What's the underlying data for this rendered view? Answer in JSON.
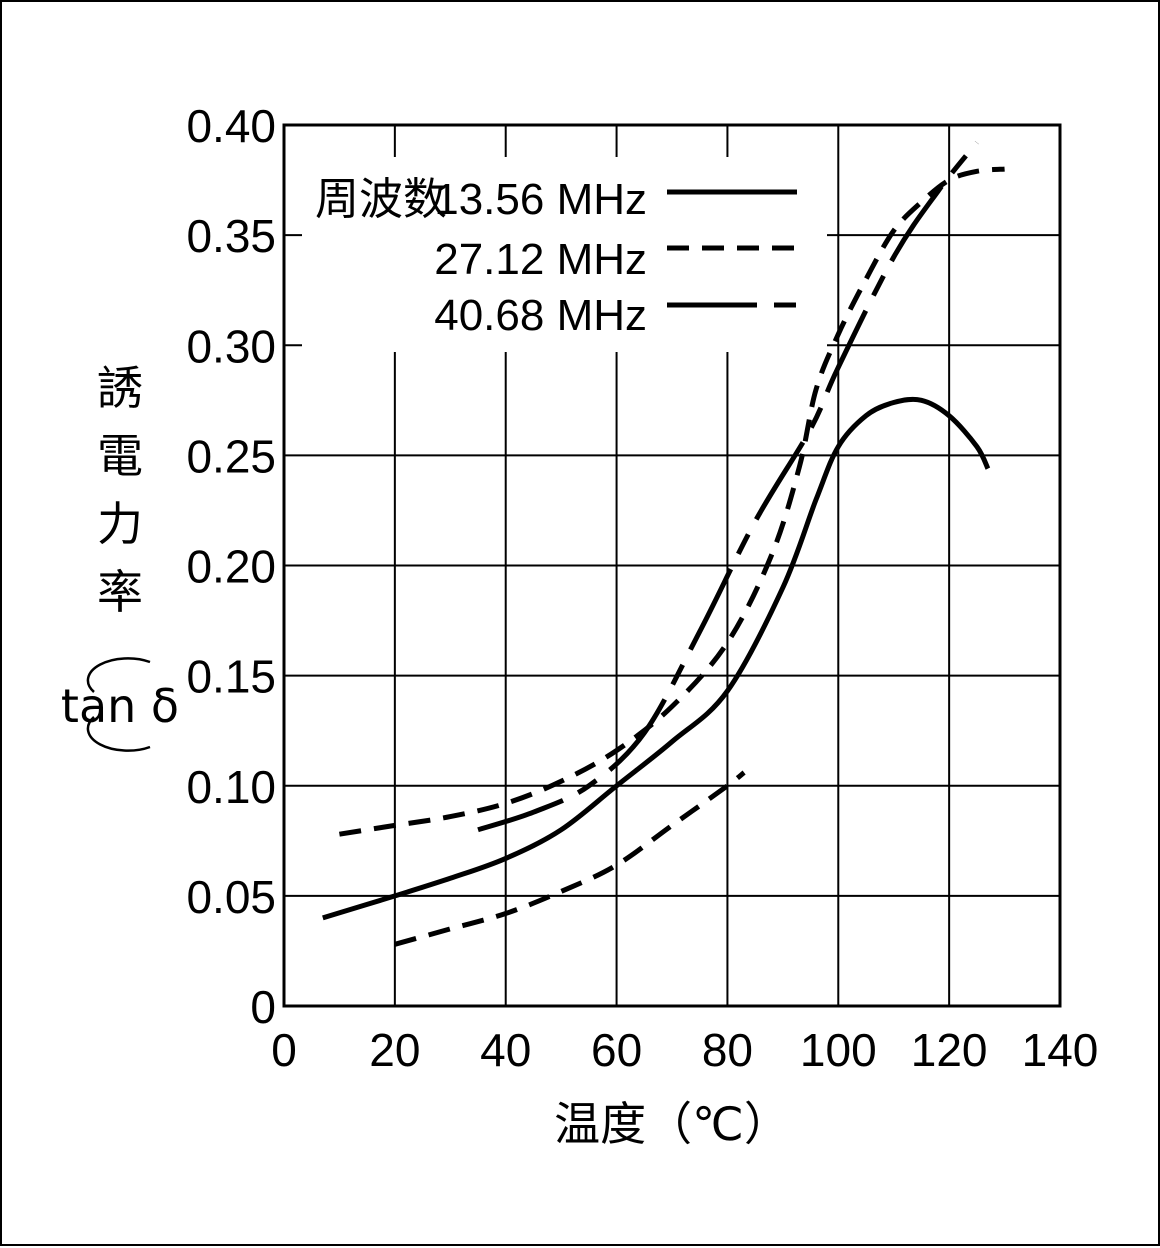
{
  "chart_data": {
    "type": "line",
    "xlabel": "温度（℃）",
    "ylabel": "誘電力率",
    "ylabel_sub": "tan δ",
    "xlim": [
      0,
      140
    ],
    "ylim": [
      0,
      0.4
    ],
    "x_ticks": [
      "0",
      "20",
      "40",
      "60",
      "80",
      "100",
      "120",
      "140"
    ],
    "y_ticks": [
      "0",
      "0.05",
      "0.10",
      "0.15",
      "0.20",
      "0.25",
      "0.30",
      "0.35",
      "0.40"
    ],
    "grid": true,
    "legend_prefix": "周波数",
    "series": [
      {
        "name": "13.56 MHz",
        "style": "solid",
        "points": [
          [
            7,
            0.04
          ],
          [
            20,
            0.05
          ],
          [
            30,
            0.058
          ],
          [
            40,
            0.067
          ],
          [
            50,
            0.08
          ],
          [
            60,
            0.1
          ],
          [
            70,
            0.12
          ],
          [
            80,
            0.143
          ],
          [
            90,
            0.19
          ],
          [
            96,
            0.23
          ],
          [
            100,
            0.254
          ],
          [
            105,
            0.268
          ],
          [
            110,
            0.274
          ],
          [
            115,
            0.275
          ],
          [
            120,
            0.268
          ],
          [
            125,
            0.254
          ],
          [
            127,
            0.244
          ]
        ]
      },
      {
        "name": "27.12 MHz",
        "style": "dashed",
        "points": [
          [
            20,
            0.028
          ],
          [
            30,
            0.035
          ],
          [
            40,
            0.042
          ],
          [
            50,
            0.052
          ],
          [
            60,
            0.064
          ],
          [
            70,
            0.082
          ],
          [
            80,
            0.1
          ],
          [
            83,
            0.106
          ]
        ]
      },
      {
        "name": "27.12 MHz",
        "style": "dashed",
        "points": [
          [
            10,
            0.078
          ],
          [
            20,
            0.082
          ],
          [
            30,
            0.086
          ],
          [
            40,
            0.092
          ],
          [
            50,
            0.102
          ],
          [
            60,
            0.116
          ],
          [
            70,
            0.136
          ],
          [
            80,
            0.165
          ],
          [
            88,
            0.205
          ],
          [
            93,
            0.245
          ],
          [
            96,
            0.28
          ],
          [
            100,
            0.305
          ],
          [
            105,
            0.33
          ],
          [
            110,
            0.352
          ],
          [
            115,
            0.365
          ],
          [
            120,
            0.375
          ],
          [
            125,
            0.379
          ],
          [
            130,
            0.38
          ]
        ]
      },
      {
        "name": "40.68 MHz",
        "style": "dash-dot",
        "points": [
          [
            35,
            0.08
          ],
          [
            45,
            0.088
          ],
          [
            55,
            0.1
          ],
          [
            65,
            0.124
          ],
          [
            75,
            0.17
          ],
          [
            85,
            0.22
          ],
          [
            95,
            0.262
          ],
          [
            100,
            0.29
          ],
          [
            110,
            0.34
          ],
          [
            118,
            0.37
          ],
          [
            125,
            0.392
          ]
        ]
      }
    ]
  }
}
